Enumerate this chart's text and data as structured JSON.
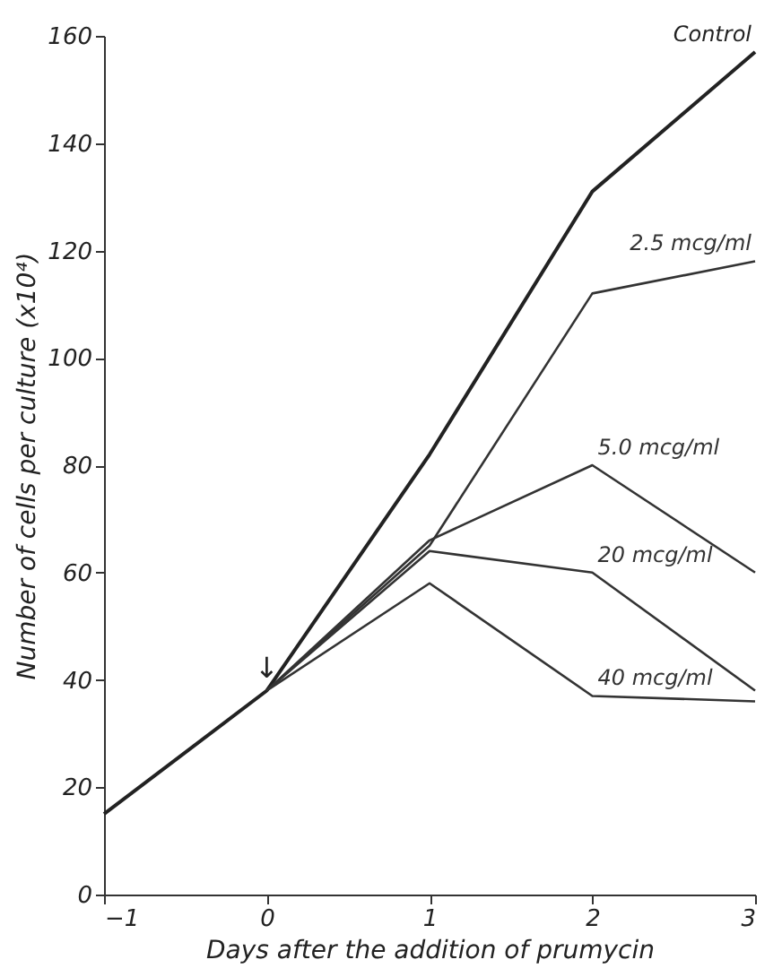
{
  "chart_data": {
    "type": "line",
    "xlabel": "Days after the addition of prumycin",
    "ylabel": "Number of cells per culture (x10⁴)",
    "xlim": [
      -1,
      3
    ],
    "xticks": [
      -1,
      0,
      1,
      2,
      3
    ],
    "ylim": [
      0,
      160
    ],
    "yticks": [
      0,
      20,
      40,
      60,
      80,
      100,
      120,
      140,
      160
    ],
    "grid": false,
    "marker": "none",
    "line_style": "solid",
    "series": [
      {
        "name": "Control",
        "color": "#222222",
        "x": [
          -1,
          0,
          1,
          2,
          3
        ],
        "values": [
          15,
          38,
          82,
          131,
          157
        ]
      },
      {
        "name": "2.5 mcg/ml",
        "color": "#333333",
        "x": [
          0,
          1,
          2,
          3
        ],
        "values": [
          38,
          65,
          112,
          118
        ]
      },
      {
        "name": "5.0 mcg/ml",
        "color": "#333333",
        "x": [
          0,
          1,
          2,
          3
        ],
        "values": [
          38,
          66,
          80,
          60
        ]
      },
      {
        "name": "20 mcg/ml",
        "color": "#333333",
        "x": [
          0,
          1,
          2,
          3
        ],
        "values": [
          38,
          64,
          60,
          38
        ]
      },
      {
        "name": "40 mcg/ml",
        "color": "#333333",
        "x": [
          0,
          1,
          2,
          3
        ],
        "values": [
          38,
          58,
          37,
          36
        ]
      }
    ],
    "annotations": [
      {
        "text": "↓",
        "x": 0,
        "y": 38
      }
    ]
  }
}
